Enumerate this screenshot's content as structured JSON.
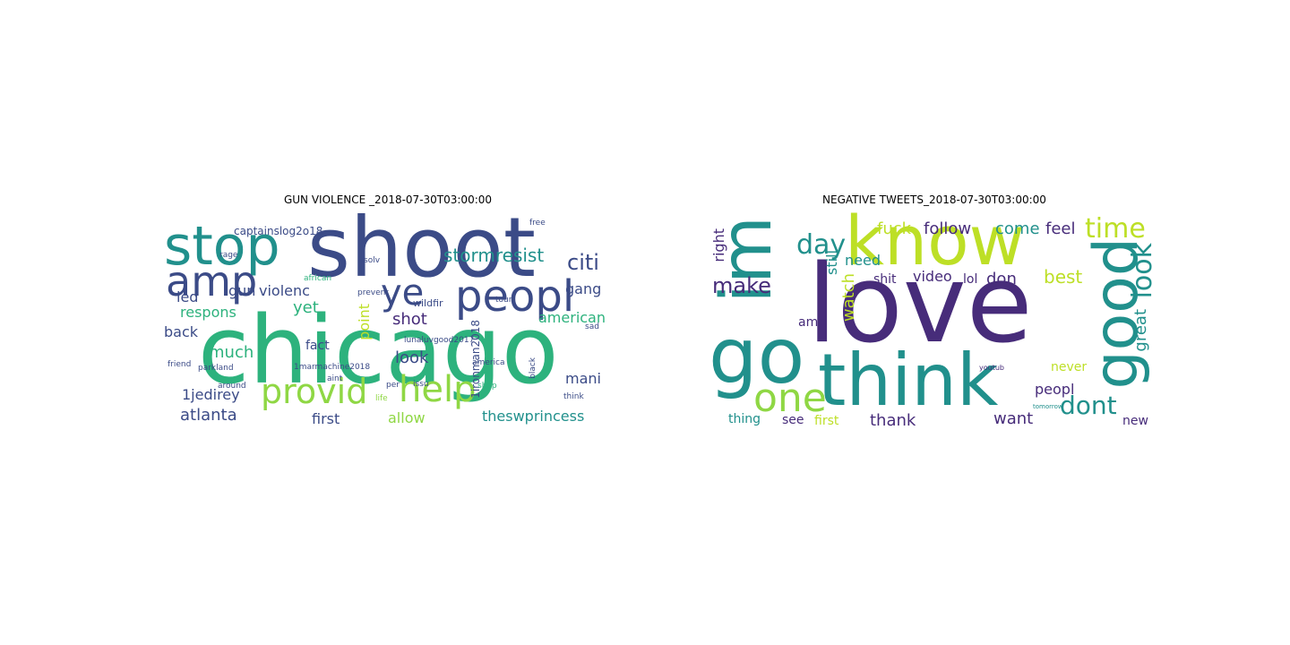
{
  "palette": {
    "dark": "#3b4b87",
    "teal": "#21908c",
    "green": "#2db27d",
    "lime": "#bddf26",
    "purple": "#472c7a",
    "light": "#8fd744"
  },
  "left": {
    "title": "GUN VIOLENCE _2018-07-30T03:00:00",
    "words": [
      "chicago",
      "shoot",
      "stop",
      "amp",
      "peopl",
      "provid",
      "help",
      "ye",
      "citi",
      "stormresist",
      "gun",
      "violenc",
      "respons",
      "led",
      "back",
      "much",
      "yet",
      "american",
      "shot",
      "gang",
      "look",
      "mani",
      "atlanta",
      "first",
      "allow",
      "theswprincess",
      "1jedirey",
      "captainslog2o18",
      "fact",
      "point",
      "wildfir",
      "1ironman2018",
      "lunaluvgood2017",
      "1marmachine2018",
      "african",
      "parkland",
      "friend",
      "around",
      "aint",
      "think",
      "free",
      "solv",
      "prevent",
      "rage",
      "sad",
      "tour",
      "black",
      "america",
      "shop",
      "issu",
      "per",
      "life"
    ]
  },
  "right": {
    "title": "NEGATIVE TWEETS_2018-07-30T03:00:00",
    "words": [
      "love",
      "know",
      "im",
      "go",
      "think",
      "good",
      "one",
      "time",
      "look",
      "day",
      "make",
      "dont",
      "great",
      "fuck",
      "follow",
      "come",
      "feel",
      "need",
      "right",
      "still",
      "watch",
      "video",
      "shit",
      "lol",
      "don",
      "best",
      "peopl",
      "amp",
      "never",
      "want",
      "thank",
      "thing",
      "see",
      "first",
      "new",
      "tomorrow",
      "youtub"
    ]
  }
}
